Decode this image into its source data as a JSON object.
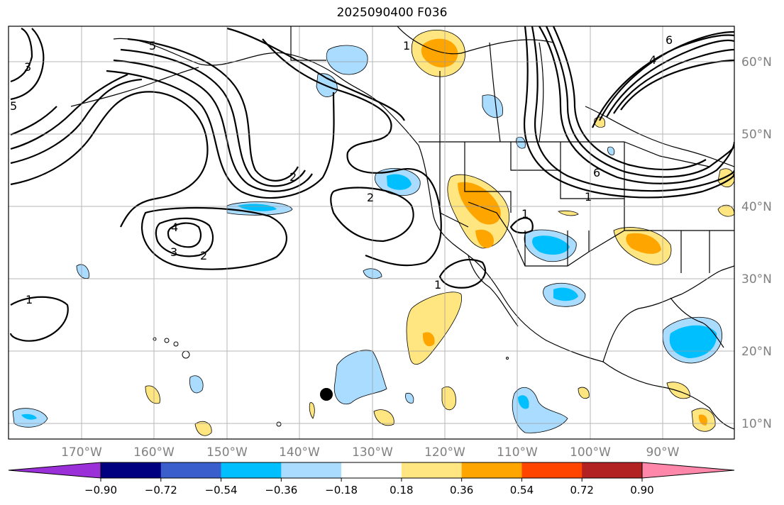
{
  "title": "2025090400 F036",
  "map": {
    "lat_labels": [
      "60°N",
      "50°N",
      "40°N",
      "30°N",
      "20°N",
      "10°N"
    ],
    "lon_labels": [
      "170°W",
      "160°W",
      "150°W",
      "140°W",
      "130°W",
      "120°W",
      "110°W",
      "100°W",
      "90°W"
    ],
    "contour_labels": [
      "1",
      "2",
      "3",
      "4",
      "5",
      "6"
    ]
  },
  "colorbar": {
    "tick_labels": [
      "−0.90",
      "−0.72",
      "−0.54",
      "−0.36",
      "−0.18",
      "0.18",
      "0.36",
      "0.54",
      "0.72",
      "0.90"
    ],
    "colors": [
      "#9b30d9",
      "#000080",
      "#3a5fcd",
      "#00bfff",
      "#aadcff",
      "#ffffff",
      "#ffe680",
      "#ffa500",
      "#ff4500",
      "#b22222",
      "#ff88aa"
    ]
  }
}
